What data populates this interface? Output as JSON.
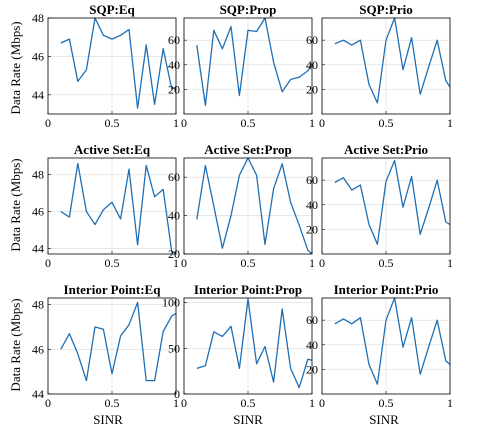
{
  "figure": {
    "ylabel": "Data Rate (Mbps)",
    "xlabel": "SINR"
  },
  "chart_data": [
    {
      "type": "line",
      "title": "SQP:Eq",
      "x": [
        0.1,
        0.167,
        0.233,
        0.3,
        0.367,
        0.433,
        0.5,
        0.567,
        0.633,
        0.7,
        0.767,
        0.833,
        0.9,
        0.967,
        1.0
      ],
      "series": [
        {
          "color": "#1f6fb4",
          "values": [
            46.7,
            46.9,
            44.7,
            45.3,
            48.0,
            47.1,
            46.9,
            47.1,
            47.4,
            43.3,
            46.6,
            43.5,
            46.4,
            44.3,
            44.4
          ]
        }
      ],
      "xlim": [
        0,
        1
      ],
      "ylim": [
        43,
        48
      ],
      "xticks": [
        0,
        0.5,
        1
      ],
      "xtick_labels": [
        "0",
        "0.5",
        "1"
      ],
      "yticks": [
        44,
        46,
        48
      ],
      "ytick_labels": [
        "44",
        "46",
        "48"
      ],
      "grid": true
    },
    {
      "type": "line",
      "title": "SQP:Prop",
      "x": [
        0.1,
        0.167,
        0.233,
        0.3,
        0.367,
        0.433,
        0.5,
        0.567,
        0.633,
        0.7,
        0.767,
        0.833,
        0.9,
        0.967,
        1.0
      ],
      "series": [
        {
          "color": "#1f6fb4",
          "values": [
            56,
            7,
            68,
            53,
            71,
            15,
            68,
            67,
            78,
            42,
            18,
            28,
            30,
            35,
            41
          ]
        }
      ],
      "xlim": [
        0,
        1
      ],
      "ylim": [
        0,
        78
      ],
      "xticks": [
        0,
        0.5,
        1
      ],
      "xtick_labels": [
        "0",
        "0.5",
        "1"
      ],
      "yticks": [
        20,
        40,
        60
      ],
      "ytick_labels": [
        "20",
        "40",
        "60"
      ],
      "grid": true
    },
    {
      "type": "line",
      "title": "SQP:Prio",
      "x": [
        0.1,
        0.167,
        0.233,
        0.3,
        0.367,
        0.433,
        0.5,
        0.567,
        0.633,
        0.7,
        0.767,
        0.833,
        0.9,
        0.967,
        1.0
      ],
      "series": [
        {
          "color": "#1f6fb4",
          "values": [
            57,
            60,
            56,
            60,
            24,
            9,
            60,
            78,
            36,
            62,
            16,
            38,
            60,
            27,
            22
          ]
        }
      ],
      "xlim": [
        0,
        1
      ],
      "ylim": [
        0,
        78
      ],
      "xticks": [
        0,
        0.5,
        1
      ],
      "xtick_labels": [
        "0",
        "0.5",
        "1"
      ],
      "yticks": [
        20,
        40,
        60
      ],
      "ytick_labels": [
        "20",
        "40",
        "60"
      ],
      "grid": true
    },
    {
      "type": "line",
      "title": "Active Set:Eq",
      "x": [
        0.1,
        0.167,
        0.233,
        0.3,
        0.367,
        0.433,
        0.5,
        0.567,
        0.633,
        0.7,
        0.767,
        0.833,
        0.9,
        0.967,
        1.0
      ],
      "series": [
        {
          "color": "#1f6fb4",
          "values": [
            46.0,
            45.7,
            48.6,
            46.0,
            45.3,
            46.1,
            46.5,
            45.6,
            48.3,
            44.2,
            48.5,
            46.8,
            47.2,
            43.8,
            43.8
          ]
        }
      ],
      "xlim": [
        0,
        1
      ],
      "ylim": [
        43.7,
        48.9
      ],
      "xticks": [
        0,
        0.5,
        1
      ],
      "xtick_labels": [
        "0",
        "0.5",
        "1"
      ],
      "yticks": [
        44,
        46,
        48
      ],
      "ytick_labels": [
        "44",
        "46",
        "48"
      ],
      "grid": true
    },
    {
      "type": "line",
      "title": "Active Set:Prop",
      "x": [
        0.1,
        0.167,
        0.233,
        0.3,
        0.367,
        0.433,
        0.5,
        0.567,
        0.633,
        0.7,
        0.767,
        0.833,
        0.9,
        0.967,
        1.0
      ],
      "series": [
        {
          "color": "#1f6fb4",
          "values": [
            38,
            66,
            45,
            23,
            40,
            61,
            70,
            61,
            25,
            54,
            67,
            47,
            35,
            22,
            20
          ]
        }
      ],
      "xlim": [
        0,
        1
      ],
      "ylim": [
        20,
        70
      ],
      "xticks": [
        0,
        0.5,
        1
      ],
      "xtick_labels": [
        "0",
        "0.5",
        "1"
      ],
      "yticks": [
        20,
        40,
        60
      ],
      "ytick_labels": [
        "20",
        "40",
        "60"
      ],
      "grid": true
    },
    {
      "type": "line",
      "title": "Active Set:Prio",
      "x": [
        0.1,
        0.167,
        0.233,
        0.3,
        0.367,
        0.433,
        0.5,
        0.567,
        0.633,
        0.7,
        0.767,
        0.833,
        0.9,
        0.967,
        1.0
      ],
      "series": [
        {
          "color": "#1f6fb4",
          "values": [
            58,
            62,
            52,
            56,
            24,
            8,
            59,
            76,
            38,
            63,
            16,
            37,
            60,
            26,
            24
          ]
        }
      ],
      "xlim": [
        0,
        1
      ],
      "ylim": [
        0,
        78
      ],
      "xticks": [
        0,
        0.5,
        1
      ],
      "xtick_labels": [
        "0",
        "0.5",
        "1"
      ],
      "yticks": [
        20,
        40,
        60
      ],
      "ytick_labels": [
        "20",
        "40",
        "60"
      ],
      "grid": true
    },
    {
      "type": "line",
      "title": "Interior Point:Eq",
      "x": [
        0.1,
        0.167,
        0.233,
        0.3,
        0.367,
        0.433,
        0.5,
        0.567,
        0.633,
        0.7,
        0.767,
        0.833,
        0.9,
        0.967,
        1.0
      ],
      "series": [
        {
          "color": "#1f6fb4",
          "values": [
            46.0,
            46.7,
            45.8,
            44.6,
            47.0,
            46.9,
            44.9,
            46.6,
            47.1,
            48.1,
            44.6,
            44.6,
            46.8,
            47.5,
            47.6
          ]
        }
      ],
      "xlim": [
        0,
        1
      ],
      "ylim": [
        44,
        48.3
      ],
      "xticks": [
        0,
        0.5,
        1
      ],
      "xtick_labels": [
        "0",
        "0.5",
        "1"
      ],
      "yticks": [
        44,
        46,
        48
      ],
      "ytick_labels": [
        "44",
        "46",
        "48"
      ],
      "grid": true
    },
    {
      "type": "line",
      "title": "Interior Point:Prop",
      "x": [
        0.1,
        0.167,
        0.233,
        0.3,
        0.367,
        0.433,
        0.5,
        0.567,
        0.633,
        0.7,
        0.767,
        0.833,
        0.9,
        0.967,
        1.0
      ],
      "series": [
        {
          "color": "#1f6fb4",
          "values": [
            28,
            31,
            68,
            63,
            74,
            28,
            104,
            33,
            52,
            13,
            93,
            28,
            7,
            38,
            37
          ]
        }
      ],
      "xlim": [
        0,
        1
      ],
      "ylim": [
        0,
        105
      ],
      "xticks": [
        0,
        0.5,
        1
      ],
      "xtick_labels": [
        "0",
        "0.5",
        "1"
      ],
      "yticks": [
        0,
        50,
        100
      ],
      "ytick_labels": [
        "0",
        "50",
        "100"
      ],
      "grid": true
    },
    {
      "type": "line",
      "title": "Interior Point:Prio",
      "x": [
        0.1,
        0.167,
        0.233,
        0.3,
        0.367,
        0.433,
        0.5,
        0.567,
        0.633,
        0.7,
        0.767,
        0.833,
        0.9,
        0.967,
        1.0
      ],
      "series": [
        {
          "color": "#1f6fb4",
          "values": [
            57,
            61,
            57,
            62,
            24,
            8,
            60,
            78,
            38,
            62,
            16,
            38,
            60,
            27,
            24
          ]
        }
      ],
      "xlim": [
        0,
        1
      ],
      "ylim": [
        0,
        78
      ],
      "xticks": [
        0,
        0.5,
        1
      ],
      "xtick_labels": [
        "0",
        "0.5",
        "1"
      ],
      "yticks": [
        20,
        40,
        60
      ],
      "ytick_labels": [
        "20",
        "40",
        "60"
      ],
      "grid": true
    }
  ]
}
